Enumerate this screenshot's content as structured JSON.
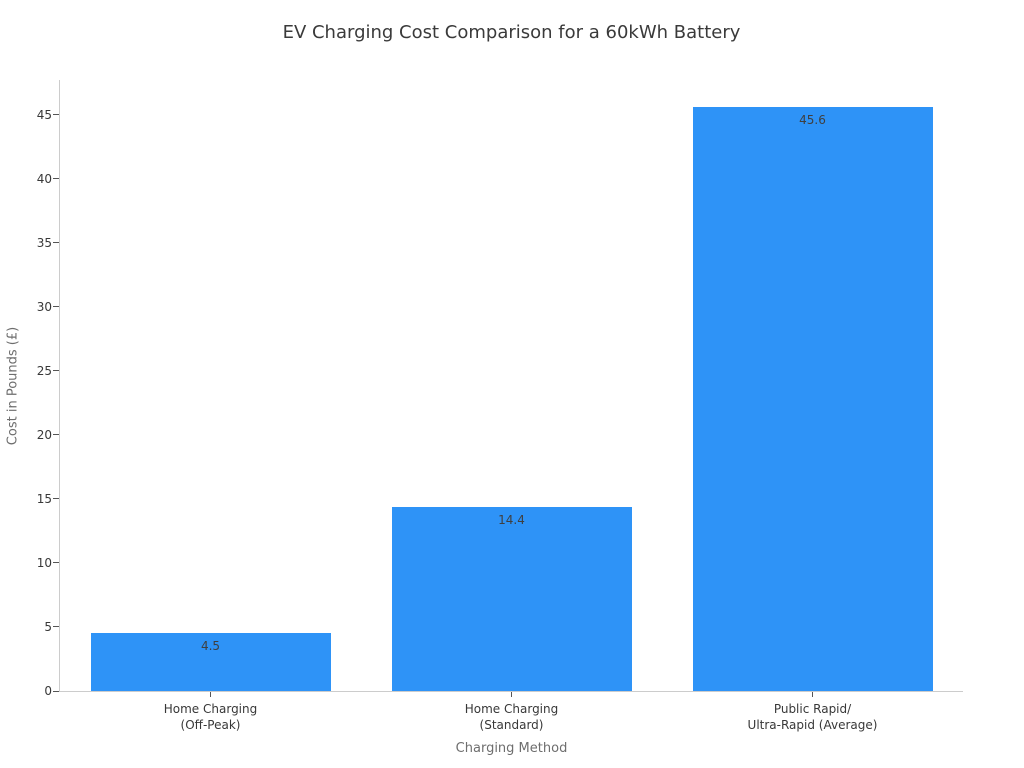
{
  "figure": {
    "background": "#ffffff"
  },
  "chart_data": {
    "type": "bar",
    "title": "EV Charging Cost Comparison for a 60kWh Battery",
    "xlabel": "Charging Method",
    "ylabel": "Cost in Pounds (£)",
    "categories": [
      "Home Charging\n(Off-Peak)",
      "Home Charging\n(Standard)",
      "Public Rapid/\nUltra-Rapid (Average)"
    ],
    "values": [
      4.5,
      14.4,
      45.6
    ],
    "bar_value_labels": [
      "4.5",
      "14.4",
      "45.6"
    ],
    "yticks": [
      0,
      5,
      10,
      15,
      20,
      25,
      30,
      35,
      40,
      45
    ],
    "ytick_labels": [
      "0",
      "5",
      "10",
      "15",
      "20",
      "25",
      "30",
      "35",
      "40",
      "45"
    ],
    "ylim": [
      0,
      47.7
    ],
    "grid": false,
    "legend": "none",
    "bar_color": "#2e93f7"
  },
  "colors": {
    "bar": "#2e93f7",
    "title_text": "#3a3a3a",
    "tick_text": "#383838",
    "axis_label_text": "#6e6e6e",
    "spine": "#cccccc",
    "tick_mark": "#555555",
    "bar_value_text": "#3f3f3f",
    "background": "#ffffff"
  }
}
